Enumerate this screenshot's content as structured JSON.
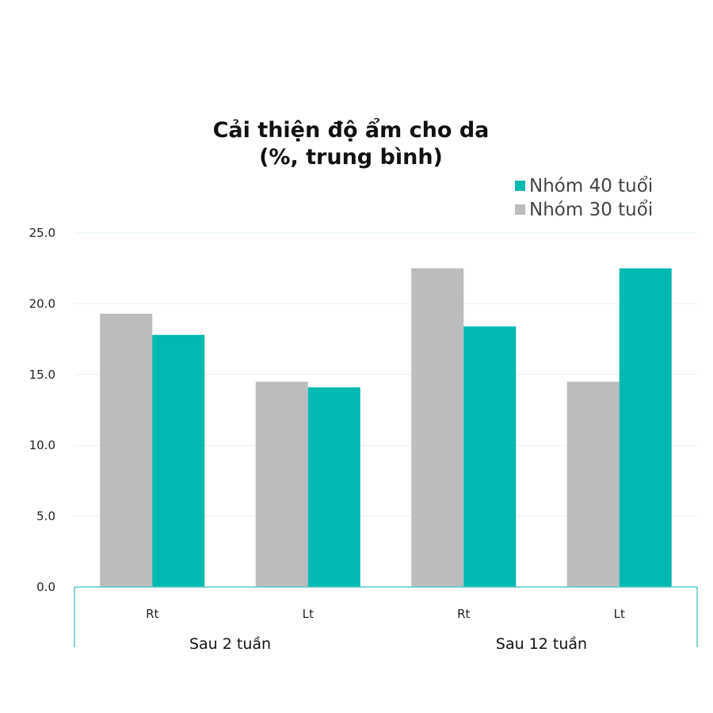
{
  "chart_data": {
    "type": "bar",
    "title_lines": [
      "Cải thiện độ ẩm cho da",
      "(%, trung bình)"
    ],
    "groups": [
      "Sau 2 tuần",
      "Sau 12 tuần"
    ],
    "categories": [
      "Rt",
      "Lt",
      "Rt",
      "Lt"
    ],
    "series": [
      {
        "name": "Nhóm 30 tuổi",
        "color": "#bbbcbe",
        "values": [
          19.3,
          14.5,
          22.5,
          14.5
        ]
      },
      {
        "name": "Nhóm 40 tuổi",
        "color": "#00b9b1",
        "values": [
          17.8,
          14.1,
          18.4,
          22.5
        ]
      }
    ],
    "legend_order": [
      1,
      0
    ],
    "legend_placement": "top-right",
    "yticks": [
      "0.0",
      "5.0",
      "10.0",
      "15.0",
      "20.0",
      "25.0"
    ],
    "ylim": [
      0,
      25
    ],
    "grid": true,
    "colors": {
      "axis": "#5ec8c8",
      "grid": "#e3f4f2"
    }
  }
}
